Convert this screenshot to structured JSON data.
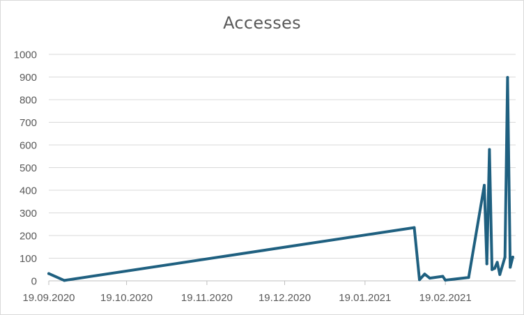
{
  "chart_data": {
    "type": "line",
    "title": "Accesses",
    "xlabel": "",
    "ylabel": "",
    "ylim": [
      0,
      1000
    ],
    "yticks": [
      0,
      100,
      200,
      300,
      400,
      500,
      600,
      700,
      800,
      900,
      1000
    ],
    "xlim": [
      "2020-09-19",
      "2021-03-22"
    ],
    "xticks": [
      {
        "date": "2020-09-19",
        "label": "19.09.2020"
      },
      {
        "date": "2020-10-19",
        "label": "19.10.2020"
      },
      {
        "date": "2020-11-19",
        "label": "19.11.2020"
      },
      {
        "date": "2020-12-19",
        "label": "19.12.2020"
      },
      {
        "date": "2021-01-19",
        "label": "19.01.2021"
      },
      {
        "date": "2021-02-19",
        "label": "19.02.2021"
      }
    ],
    "grid": true,
    "legend": "none",
    "line_color": "#1f6080",
    "series": [
      {
        "name": "",
        "x": [
          "2020-09-19",
          "2020-09-25",
          "2021-02-07",
          "2021-02-09",
          "2021-02-11",
          "2021-02-13",
          "2021-02-18",
          "2021-02-19",
          "2021-02-28",
          "2021-03-06",
          "2021-03-07",
          "2021-03-08",
          "2021-03-09",
          "2021-03-10",
          "2021-03-11",
          "2021-03-12",
          "2021-03-14",
          "2021-03-15",
          "2021-03-16",
          "2021-03-17"
        ],
        "y": [
          32,
          2,
          235,
          5,
          30,
          12,
          20,
          3,
          15,
          422,
          75,
          580,
          50,
          55,
          82,
          28,
          105,
          898,
          60,
          105
        ]
      }
    ]
  }
}
